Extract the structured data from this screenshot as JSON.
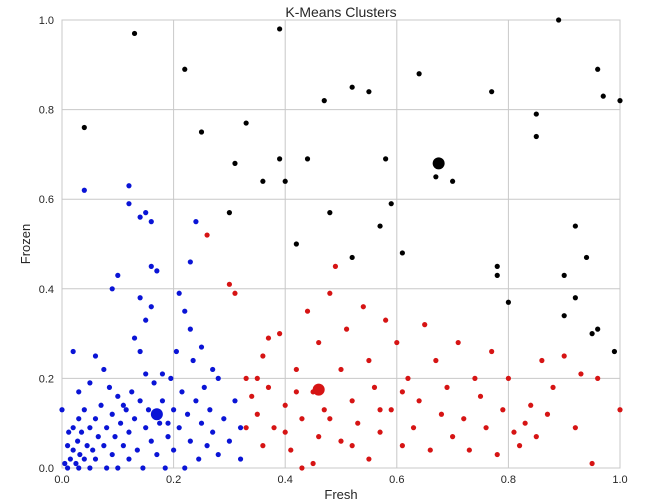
{
  "chart_data": {
    "type": "scatter",
    "title": "K-Means Clusters",
    "xlabel": "Fresh",
    "ylabel": "Frozen",
    "xlim": [
      0.0,
      1.0
    ],
    "ylim": [
      0.0,
      1.0
    ],
    "x_ticks": [
      "0.0",
      "0.2",
      "0.4",
      "0.6",
      "0.8",
      "1.0"
    ],
    "y_ticks": [
      "0.0",
      "0.2",
      "0.4",
      "0.6",
      "0.8",
      "1.0"
    ],
    "grid": true,
    "legend": "none",
    "series": [
      {
        "color": "#0a14d6",
        "points": [
          [
            0.0,
            0.13
          ],
          [
            0.005,
            0.01
          ],
          [
            0.01,
            0.0
          ],
          [
            0.01,
            0.05
          ],
          [
            0.012,
            0.08
          ],
          [
            0.015,
            0.02
          ],
          [
            0.02,
            0.09
          ],
          [
            0.02,
            0.04
          ],
          [
            0.025,
            0.01
          ],
          [
            0.028,
            0.06
          ],
          [
            0.03,
            0.11
          ],
          [
            0.03,
            0.0
          ],
          [
            0.032,
            0.03
          ],
          [
            0.035,
            0.08
          ],
          [
            0.04,
            0.02
          ],
          [
            0.04,
            0.13
          ],
          [
            0.045,
            0.05
          ],
          [
            0.05,
            0.0
          ],
          [
            0.05,
            0.09
          ],
          [
            0.055,
            0.04
          ],
          [
            0.06,
            0.11
          ],
          [
            0.06,
            0.02
          ],
          [
            0.065,
            0.07
          ],
          [
            0.07,
            0.14
          ],
          [
            0.075,
            0.05
          ],
          [
            0.08,
            0.0
          ],
          [
            0.08,
            0.09
          ],
          [
            0.085,
            0.18
          ],
          [
            0.09,
            0.03
          ],
          [
            0.09,
            0.12
          ],
          [
            0.095,
            0.07
          ],
          [
            0.1,
            0.16
          ],
          [
            0.1,
            0.0
          ],
          [
            0.105,
            0.1
          ],
          [
            0.11,
            0.05
          ],
          [
            0.115,
            0.13
          ],
          [
            0.12,
            0.08
          ],
          [
            0.12,
            0.02
          ],
          [
            0.125,
            0.17
          ],
          [
            0.13,
            0.11
          ],
          [
            0.135,
            0.04
          ],
          [
            0.14,
            0.15
          ],
          [
            0.145,
            0.0
          ],
          [
            0.15,
            0.09
          ],
          [
            0.15,
            0.21
          ],
          [
            0.155,
            0.13
          ],
          [
            0.16,
            0.06
          ],
          [
            0.165,
            0.19
          ],
          [
            0.17,
            0.03
          ],
          [
            0.175,
            0.1
          ],
          [
            0.18,
            0.15
          ],
          [
            0.185,
            0.0
          ],
          [
            0.19,
            0.07
          ],
          [
            0.195,
            0.2
          ],
          [
            0.2,
            0.13
          ],
          [
            0.2,
            0.04
          ],
          [
            0.205,
            0.26
          ],
          [
            0.21,
            0.09
          ],
          [
            0.215,
            0.17
          ],
          [
            0.22,
            0.0
          ],
          [
            0.225,
            0.12
          ],
          [
            0.23,
            0.06
          ],
          [
            0.235,
            0.24
          ],
          [
            0.24,
            0.15
          ],
          [
            0.245,
            0.02
          ],
          [
            0.25,
            0.1
          ],
          [
            0.255,
            0.18
          ],
          [
            0.26,
            0.05
          ],
          [
            0.265,
            0.13
          ],
          [
            0.27,
            0.08
          ],
          [
            0.28,
            0.03
          ],
          [
            0.29,
            0.11
          ],
          [
            0.3,
            0.06
          ],
          [
            0.31,
            0.15
          ],
          [
            0.32,
            0.09
          ],
          [
            0.32,
            0.02
          ],
          [
            0.06,
            0.25
          ],
          [
            0.075,
            0.22
          ],
          [
            0.13,
            0.29
          ],
          [
            0.14,
            0.26
          ],
          [
            0.15,
            0.33
          ],
          [
            0.16,
            0.36
          ],
          [
            0.22,
            0.35
          ],
          [
            0.23,
            0.31
          ],
          [
            0.21,
            0.39
          ],
          [
            0.25,
            0.27
          ],
          [
            0.27,
            0.22
          ],
          [
            0.28,
            0.2
          ],
          [
            0.12,
            0.63
          ],
          [
            0.12,
            0.59
          ],
          [
            0.14,
            0.56
          ],
          [
            0.15,
            0.57
          ],
          [
            0.16,
            0.55
          ],
          [
            0.16,
            0.45
          ],
          [
            0.17,
            0.44
          ],
          [
            0.24,
            0.55
          ],
          [
            0.23,
            0.46
          ],
          [
            0.1,
            0.43
          ],
          [
            0.09,
            0.4
          ],
          [
            0.14,
            0.38
          ],
          [
            0.04,
            0.62
          ],
          [
            0.02,
            0.26
          ],
          [
            0.05,
            0.19
          ],
          [
            0.03,
            0.17
          ],
          [
            0.11,
            0.14
          ],
          [
            0.18,
            0.21
          ],
          [
            0.19,
            0.1
          ]
        ]
      },
      {
        "color": "#d61414",
        "points": [
          [
            0.26,
            0.52
          ],
          [
            0.3,
            0.41
          ],
          [
            0.31,
            0.39
          ],
          [
            0.33,
            0.2
          ],
          [
            0.34,
            0.16
          ],
          [
            0.35,
            0.12
          ],
          [
            0.36,
            0.05
          ],
          [
            0.36,
            0.25
          ],
          [
            0.37,
            0.18
          ],
          [
            0.38,
            0.09
          ],
          [
            0.39,
            0.3
          ],
          [
            0.4,
            0.14
          ],
          [
            0.41,
            0.04
          ],
          [
            0.42,
            0.22
          ],
          [
            0.43,
            0.11
          ],
          [
            0.43,
            0.0
          ],
          [
            0.44,
            0.35
          ],
          [
            0.45,
            0.17
          ],
          [
            0.46,
            0.07
          ],
          [
            0.46,
            0.28
          ],
          [
            0.47,
            0.13
          ],
          [
            0.48,
            0.39
          ],
          [
            0.49,
            0.45
          ],
          [
            0.5,
            0.22
          ],
          [
            0.5,
            0.06
          ],
          [
            0.51,
            0.31
          ],
          [
            0.52,
            0.15
          ],
          [
            0.53,
            0.1
          ],
          [
            0.54,
            0.36
          ],
          [
            0.55,
            0.02
          ],
          [
            0.55,
            0.24
          ],
          [
            0.56,
            0.18
          ],
          [
            0.57,
            0.08
          ],
          [
            0.58,
            0.33
          ],
          [
            0.59,
            0.13
          ],
          [
            0.6,
            0.28
          ],
          [
            0.61,
            0.05
          ],
          [
            0.62,
            0.2
          ],
          [
            0.63,
            0.09
          ],
          [
            0.64,
            0.15
          ],
          [
            0.65,
            0.32
          ],
          [
            0.66,
            0.04
          ],
          [
            0.67,
            0.24
          ],
          [
            0.68,
            0.12
          ],
          [
            0.69,
            0.18
          ],
          [
            0.7,
            0.07
          ],
          [
            0.71,
            0.28
          ],
          [
            0.72,
            0.11
          ],
          [
            0.73,
            0.04
          ],
          [
            0.74,
            0.2
          ],
          [
            0.75,
            0.16
          ],
          [
            0.76,
            0.09
          ],
          [
            0.77,
            0.26
          ],
          [
            0.78,
            0.03
          ],
          [
            0.79,
            0.13
          ],
          [
            0.8,
            0.2
          ],
          [
            0.81,
            0.08
          ],
          [
            0.82,
            0.05
          ],
          [
            0.83,
            0.1
          ],
          [
            0.84,
            0.14
          ],
          [
            0.85,
            0.07
          ],
          [
            0.86,
            0.24
          ],
          [
            0.87,
            0.12
          ],
          [
            0.88,
            0.18
          ],
          [
            0.9,
            0.25
          ],
          [
            0.92,
            0.09
          ],
          [
            0.93,
            0.21
          ],
          [
            0.95,
            0.01
          ],
          [
            0.96,
            0.2
          ],
          [
            1.0,
            0.13
          ],
          [
            0.33,
            0.09
          ],
          [
            0.35,
            0.2
          ],
          [
            0.37,
            0.29
          ],
          [
            0.4,
            0.08
          ],
          [
            0.42,
            0.17
          ],
          [
            0.45,
            0.01
          ],
          [
            0.48,
            0.11
          ],
          [
            0.52,
            0.05
          ],
          [
            0.57,
            0.13
          ],
          [
            0.61,
            0.17
          ]
        ]
      },
      {
        "color": "#000000",
        "points": [
          [
            0.13,
            0.97
          ],
          [
            0.22,
            0.89
          ],
          [
            0.04,
            0.76
          ],
          [
            0.25,
            0.75
          ],
          [
            0.33,
            0.77
          ],
          [
            0.39,
            0.98
          ],
          [
            0.47,
            0.82
          ],
          [
            0.52,
            0.85
          ],
          [
            0.55,
            0.84
          ],
          [
            0.64,
            0.88
          ],
          [
            0.77,
            0.84
          ],
          [
            0.85,
            0.79
          ],
          [
            0.85,
            0.74
          ],
          [
            0.89,
            1.0
          ],
          [
            0.96,
            0.89
          ],
          [
            0.97,
            0.83
          ],
          [
            1.0,
            0.82
          ],
          [
            0.31,
            0.68
          ],
          [
            0.36,
            0.64
          ],
          [
            0.39,
            0.69
          ],
          [
            0.4,
            0.64
          ],
          [
            0.44,
            0.69
          ],
          [
            0.58,
            0.69
          ],
          [
            0.67,
            0.65
          ],
          [
            0.7,
            0.64
          ],
          [
            0.3,
            0.57
          ],
          [
            0.48,
            0.57
          ],
          [
            0.59,
            0.59
          ],
          [
            0.57,
            0.54
          ],
          [
            0.42,
            0.5
          ],
          [
            0.52,
            0.47
          ],
          [
            0.61,
            0.48
          ],
          [
            0.78,
            0.45
          ],
          [
            0.78,
            0.43
          ],
          [
            0.8,
            0.37
          ],
          [
            0.9,
            0.43
          ],
          [
            0.92,
            0.54
          ],
          [
            0.94,
            0.47
          ],
          [
            0.92,
            0.38
          ],
          [
            0.9,
            0.34
          ],
          [
            0.95,
            0.3
          ],
          [
            0.96,
            0.31
          ],
          [
            0.99,
            0.26
          ]
        ]
      }
    ],
    "centroids": [
      {
        "x": 0.17,
        "y": 0.12,
        "color": "#0a14d6"
      },
      {
        "x": 0.46,
        "y": 0.175,
        "color": "#d61414"
      },
      {
        "x": 0.675,
        "y": 0.68,
        "color": "#000000"
      }
    ]
  }
}
